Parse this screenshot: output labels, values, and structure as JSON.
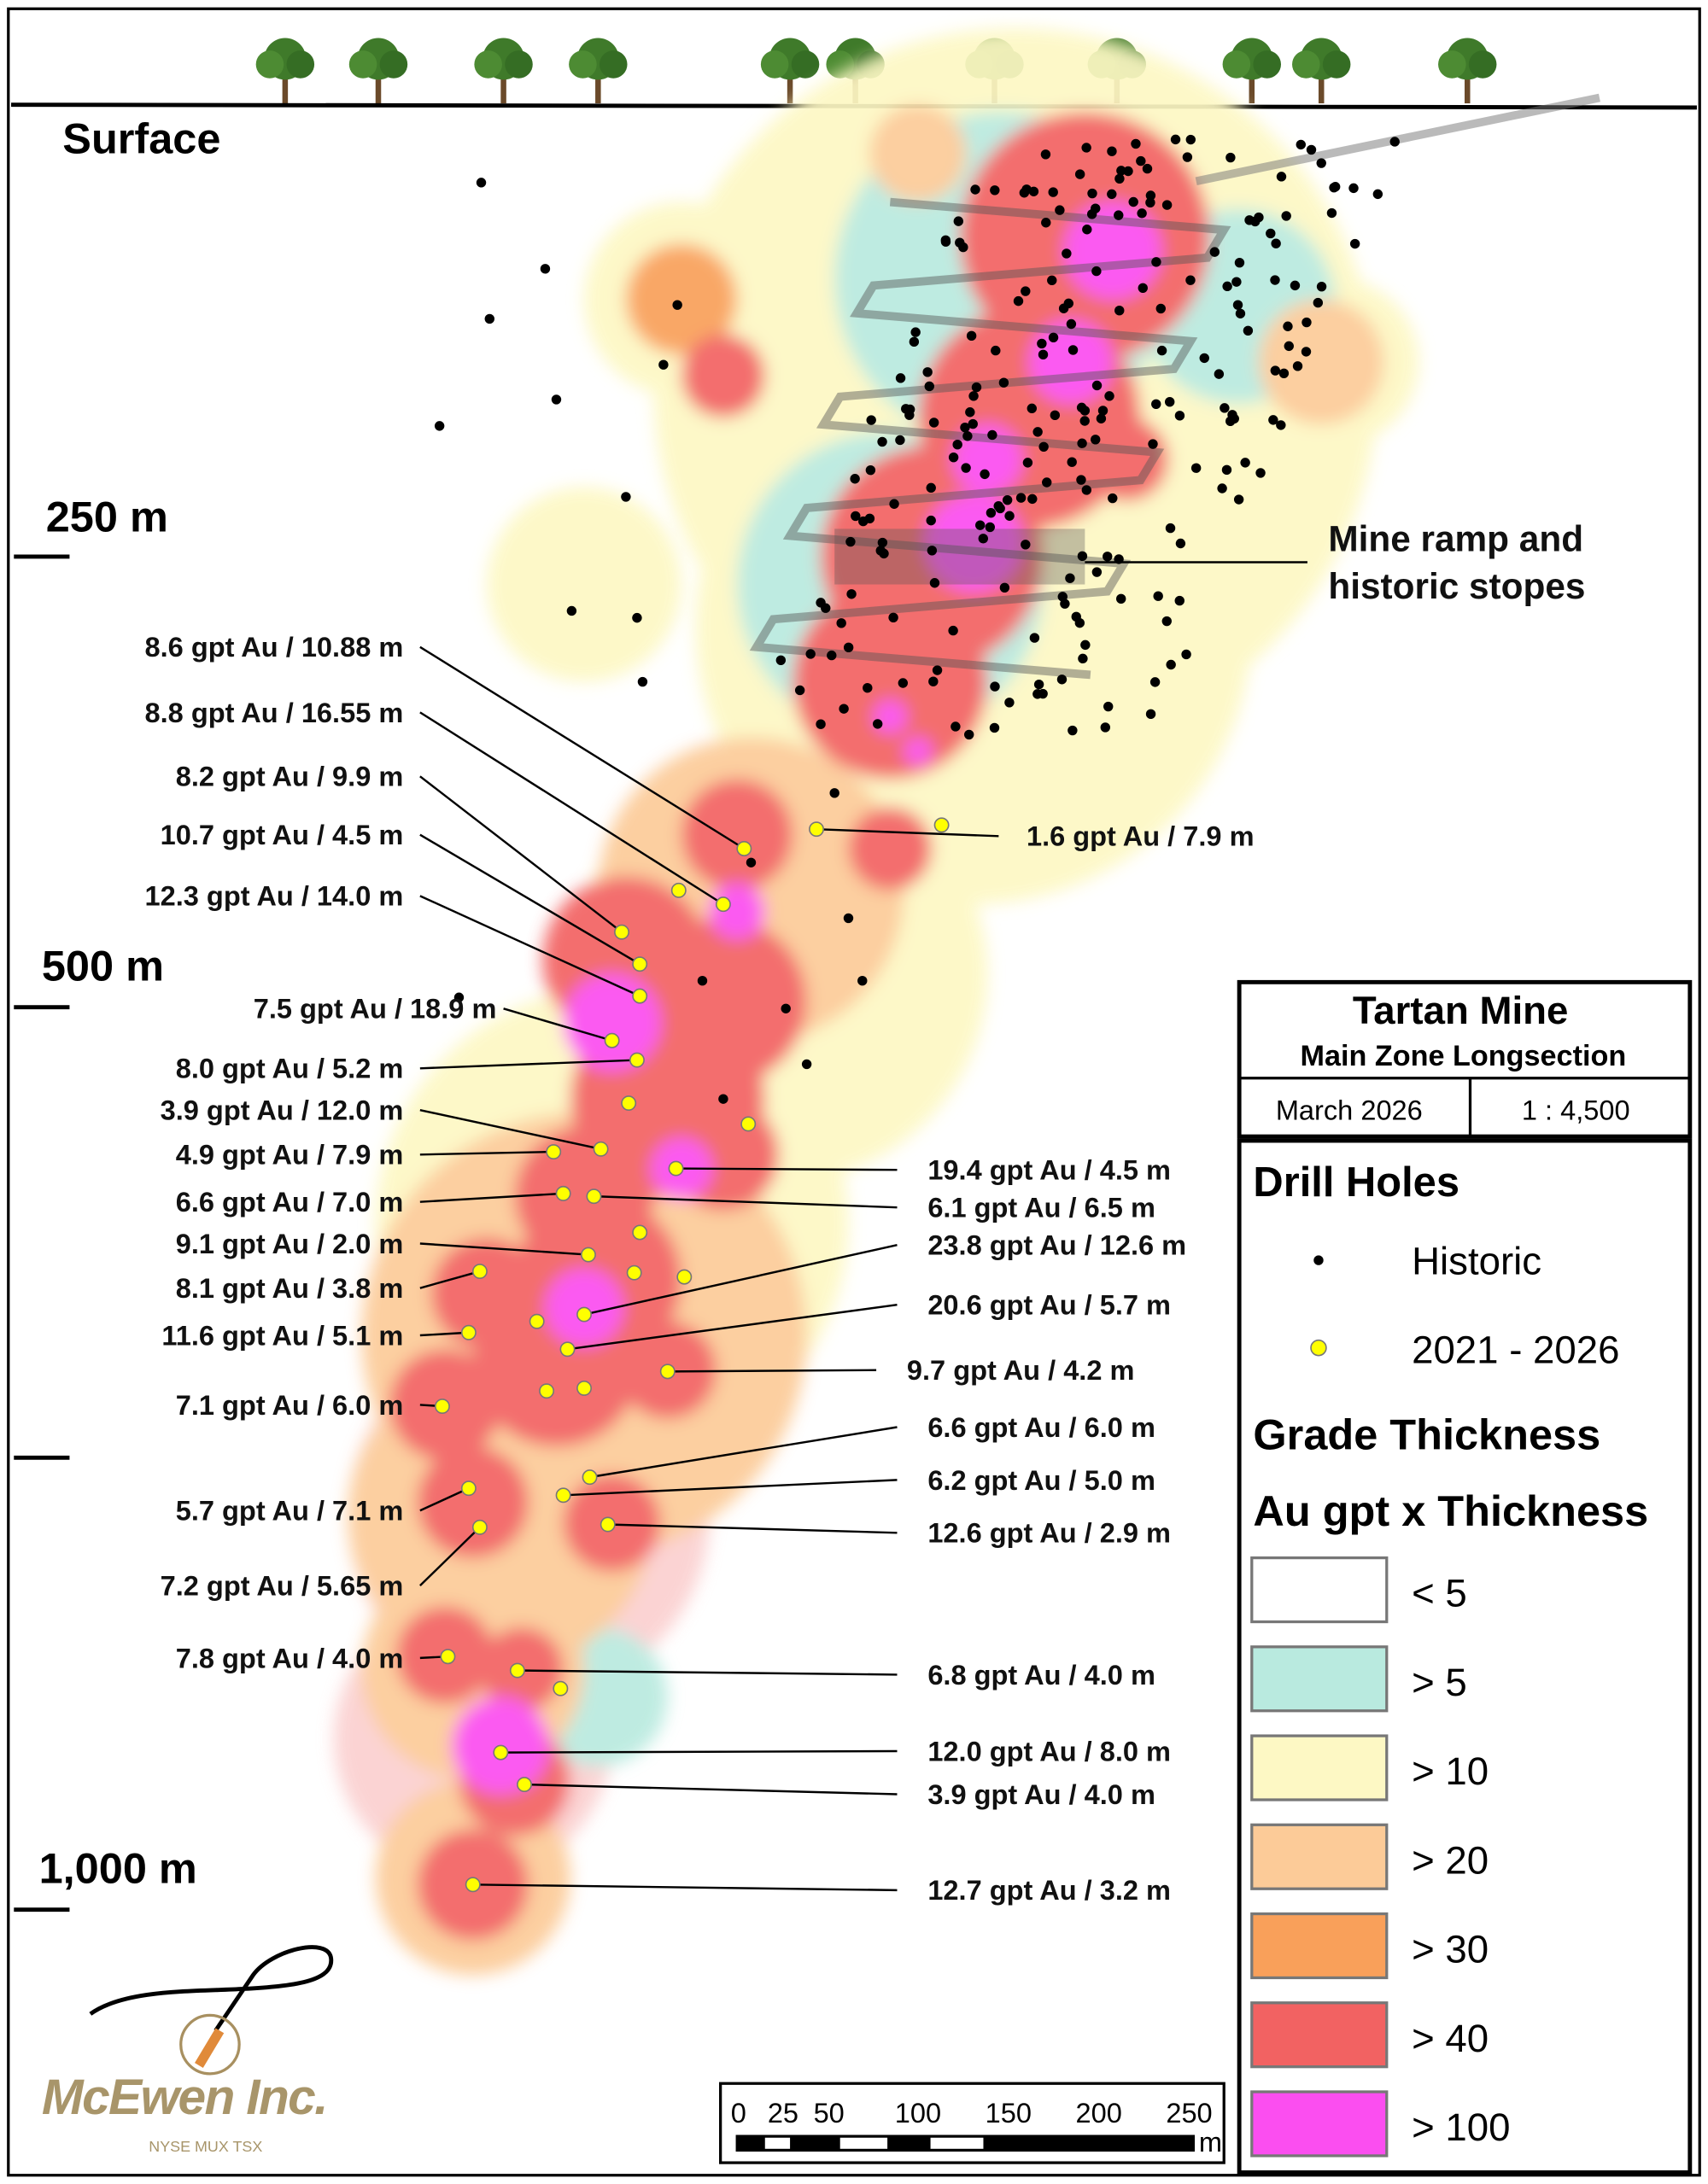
{
  "surface_label": "Surface",
  "depth_labels": [
    "250 m",
    "500 m",
    "1,000 m"
  ],
  "annotation_ramp": [
    "Mine ramp and",
    "historic stopes"
  ],
  "title_block": {
    "title": "Tartan Mine",
    "subtitle": "Main Zone Longsection",
    "date": "March 2026",
    "scale": "1 : 4,500"
  },
  "legend": {
    "drill_holes_title": "Drill Holes",
    "drill_holes": [
      {
        "label": "Historic",
        "color": "#000000"
      },
      {
        "label": "2021 - 2026",
        "color": "#ffff00"
      }
    ],
    "grade_title": "Grade Thickness",
    "grade_subtitle": "Au gpt x Thickness",
    "classes": [
      {
        "label": "< 5",
        "color": "#ffffff"
      },
      {
        "label": "> 5",
        "color": "#b9eadf"
      },
      {
        "label": "> 10",
        "color": "#fdf8c4"
      },
      {
        "label": "> 20",
        "color": "#fccb98"
      },
      {
        "label": "> 30",
        "color": "#f9a05a"
      },
      {
        "label": "> 40",
        "color": "#f26262"
      },
      {
        "label": "> 100",
        "color": "#fb4ef0"
      }
    ]
  },
  "scale_bar": {
    "ticks": [
      "0",
      "25",
      "50",
      "100",
      "150",
      "200",
      "250"
    ],
    "unit": "m"
  },
  "intercepts_left": [
    "8.6 gpt Au / 10.88 m",
    "8.8 gpt Au / 16.55 m",
    "8.2 gpt Au / 9.9 m",
    "10.7 gpt Au / 4.5 m",
    "12.3 gpt Au / 14.0 m",
    "7.5 gpt Au / 18.9 m",
    "8.0 gpt Au / 5.2 m",
    "3.9 gpt Au / 12.0 m",
    "4.9 gpt Au / 7.9 m",
    "6.6 gpt Au / 7.0 m",
    "9.1 gpt Au / 2.0 m",
    "8.1 gpt Au / 3.8 m",
    "11.6 gpt Au / 5.1 m",
    "7.1 gpt Au / 6.0 m",
    "5.7 gpt Au / 7.1 m",
    "7.2 gpt Au / 5.65 m",
    "7.8 gpt Au / 4.0 m"
  ],
  "intercepts_right": [
    "1.6 gpt Au / 7.9 m",
    "19.4 gpt Au / 4.5 m",
    "6.1 gpt Au / 6.5 m",
    "23.8 gpt Au / 12.6 m",
    "20.6 gpt Au / 5.7 m",
    "9.7 gpt Au / 4.2 m",
    "6.6 gpt Au / 6.0 m",
    "6.2 gpt Au / 5.0 m",
    "12.6 gpt Au / 2.9 m",
    "6.8 gpt Au / 4.0 m",
    "12.0 gpt Au / 8.0 m",
    "3.9 gpt Au / 4.0 m",
    "12.7 gpt Au / 3.2 m"
  ],
  "logo": {
    "name": "McEwen Inc.",
    "exchanges": "NYSE MUX TSX"
  }
}
